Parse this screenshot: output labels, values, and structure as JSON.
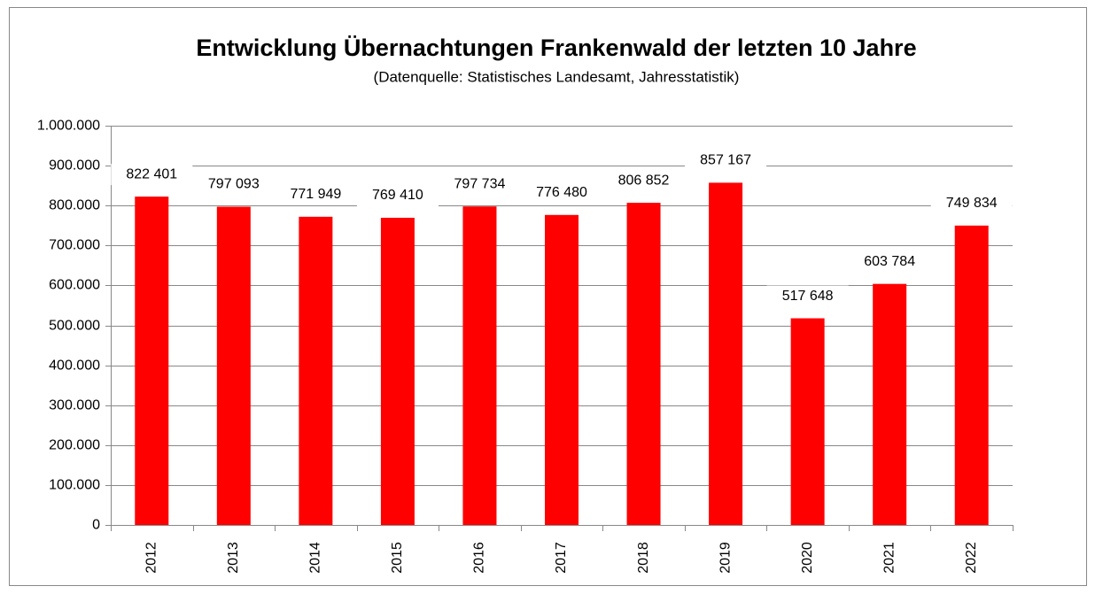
{
  "chart_data": {
    "type": "bar",
    "title": "Entwicklung Übernachtungen Frankenwald der letzten 10 Jahre",
    "subtitle": "(Datenquelle: Statistisches Landesamt, Jahresstatistik)",
    "categories": [
      "2012",
      "2013",
      "2014",
      "2015",
      "2016",
      "2017",
      "2018",
      "2019",
      "2020",
      "2021",
      "2022"
    ],
    "values": [
      822401,
      797093,
      771949,
      769410,
      797734,
      776480,
      806852,
      857167,
      517648,
      603784,
      749834
    ],
    "value_labels": [
      "822 401",
      "797 093",
      "771 949",
      "769 410",
      "797 734",
      "776 480",
      "806 852",
      "857 167",
      "517 648",
      "603 784",
      "749 834"
    ],
    "color": "#ff0000",
    "ylim": [
      0,
      1000000
    ],
    "yticks": [
      0,
      {
        "value": 100000,
        "label": "100.000"
      },
      {
        "value": 200000,
        "label": "200.000"
      },
      {
        "value": 300000,
        "label": "300.000"
      },
      {
        "value": 400000,
        "label": "400.000"
      },
      {
        "value": 500000,
        "label": "500.000"
      },
      {
        "value": 600000,
        "label": "600.000"
      },
      {
        "value": 700000,
        "label": "700.000"
      },
      {
        "value": 800000,
        "label": "800.000"
      },
      {
        "value": 900000,
        "label": "900.000"
      },
      {
        "value": 1000000,
        "label": "1.000.000"
      }
    ],
    "grid": true
  }
}
